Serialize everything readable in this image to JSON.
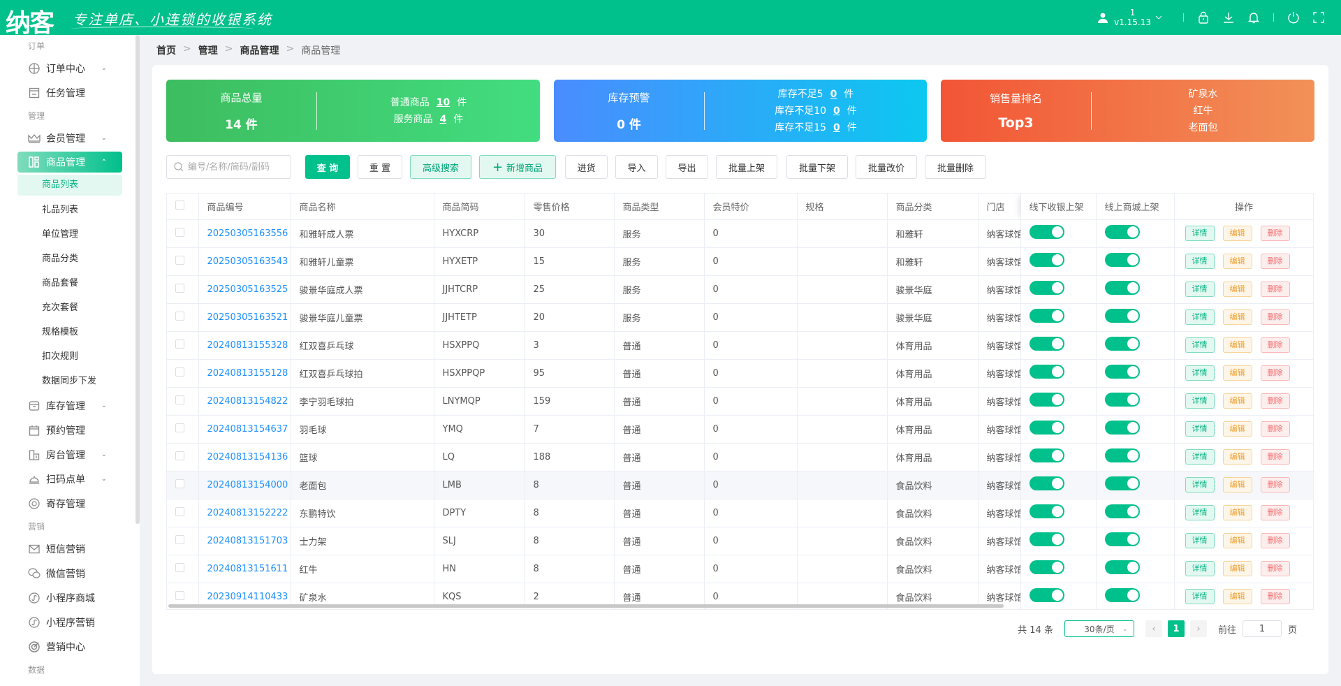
{
  "header": {
    "logo": "纳客",
    "slogan": "专注单店、小连锁的收银系统",
    "user": "1",
    "version": "v1.15.13",
    "icons": [
      "user-icon",
      "chevron-down-icon",
      "lock-icon",
      "download-icon",
      "bell-icon",
      "power-icon",
      "fullscreen-icon"
    ]
  },
  "sidebar": {
    "sections": [
      {
        "group": "订单",
        "items": [
          {
            "label": "订单中心",
            "icon": "globe-icon",
            "chevron": true
          },
          {
            "label": "任务管理",
            "icon": "task-icon"
          }
        ]
      },
      {
        "group": "管理",
        "items": [
          {
            "label": "会员管理",
            "icon": "crown-icon",
            "chevron": true
          },
          {
            "label": "商品管理",
            "icon": "goods-icon",
            "chevron": true,
            "active": true,
            "children": [
              "商品列表",
              "礼品列表",
              "单位管理",
              "商品分类",
              "商品套餐",
              "充次套餐",
              "规格模板",
              "扣次规则",
              "数据同步下发"
            ],
            "current": "商品列表"
          },
          {
            "label": "库存管理",
            "icon": "inventory-icon",
            "chevron": true
          },
          {
            "label": "预约管理",
            "icon": "calendar-icon"
          },
          {
            "label": "房台管理",
            "icon": "building-icon",
            "chevron": true
          },
          {
            "label": "扫码点单",
            "icon": "bell-service-icon",
            "chevron": true
          },
          {
            "label": "寄存管理",
            "icon": "deposit-icon"
          }
        ]
      },
      {
        "group": "营销",
        "items": [
          {
            "label": "短信营销",
            "icon": "mail-icon"
          },
          {
            "label": "微信营销",
            "icon": "wechat-icon"
          },
          {
            "label": "小程序商城",
            "icon": "miniprogram-icon"
          },
          {
            "label": "小程序营销",
            "icon": "miniprogram-icon"
          },
          {
            "label": "营销中心",
            "icon": "target-icon"
          }
        ]
      },
      {
        "group": "数据",
        "items": []
      }
    ]
  },
  "breadcrumb": [
    "首页",
    "管理",
    "商品管理",
    "商品管理"
  ],
  "stats": {
    "total": {
      "title": "商品总量",
      "value": "14",
      "unit": "件",
      "normal_label": "普通商品",
      "normal": "10",
      "service_label": "服务商品",
      "service": "4",
      "color_from": "#3dbd5f",
      "color_to": "#42dd80"
    },
    "stock": {
      "title": "库存预警",
      "value": "0",
      "unit": "件",
      "rows": [
        {
          "label": "库存不足5",
          "value": "0"
        },
        {
          "label": "库存不足10",
          "value": "0"
        },
        {
          "label": "库存不足15",
          "value": "0"
        }
      ],
      "color_from": "#4a8cff",
      "color_to": "#0cc8f0"
    },
    "sales": {
      "title": "销售量排名",
      "value": "Top3",
      "top": [
        "矿泉水",
        "红牛",
        "老面包"
      ],
      "color_from": "#f25535",
      "color_to": "#f29158"
    }
  },
  "toolbar": {
    "search_placeholder": "编号/名称/简码/副码",
    "buttons": [
      "查 询",
      "重 置",
      "高级搜索",
      "新增商品",
      "进货",
      "导入",
      "导出",
      "批量上架",
      "批量下架",
      "批量改价",
      "批量删除"
    ]
  },
  "table": {
    "columns": [
      "商品编号",
      "商品名称",
      "商品简码",
      "零售价格",
      "商品类型",
      "会员特价",
      "规格",
      "商品分类",
      "门店",
      "线下收银上架",
      "线上商城上架",
      "操作"
    ],
    "actions": [
      "详情",
      "编辑",
      "删除"
    ],
    "rows": [
      [
        "20250305163556",
        "和雅轩成人票",
        "HYXCRP",
        "30",
        "服务",
        "0",
        "",
        "和雅轩",
        "纳客球馆"
      ],
      [
        "20250305163543",
        "和雅轩儿童票",
        "HYXETP",
        "15",
        "服务",
        "0",
        "",
        "和雅轩",
        "纳客球馆"
      ],
      [
        "20250305163525",
        "骏景华庭成人票",
        "JJHTCRP",
        "25",
        "服务",
        "0",
        "",
        "骏景华庭",
        "纳客球馆"
      ],
      [
        "20250305163521",
        "骏景华庭儿童票",
        "JJHTETP",
        "20",
        "服务",
        "0",
        "",
        "骏景华庭",
        "纳客球馆"
      ],
      [
        "20240813155328",
        "红双喜乒乓球",
        "HSXPPQ",
        "3",
        "普通",
        "0",
        "",
        "体育用品",
        "纳客球馆"
      ],
      [
        "20240813155128",
        "红双喜乒乓球拍",
        "HSXPPQP",
        "95",
        "普通",
        "0",
        "",
        "体育用品",
        "纳客球馆"
      ],
      [
        "20240813154822",
        "李宁羽毛球拍",
        "LNYMQP",
        "159",
        "普通",
        "0",
        "",
        "体育用品",
        "纳客球馆"
      ],
      [
        "20240813154637",
        "羽毛球",
        "YMQ",
        "7",
        "普通",
        "0",
        "",
        "体育用品",
        "纳客球馆"
      ],
      [
        "20240813154136",
        "篮球",
        "LQ",
        "188",
        "普通",
        "0",
        "",
        "体育用品",
        "纳客球馆"
      ],
      [
        "20240813154000",
        "老面包",
        "LMB",
        "8",
        "普通",
        "0",
        "",
        "食品饮料",
        "纳客球馆"
      ],
      [
        "20240813152222",
        "东鹏特饮",
        "DPTY",
        "8",
        "普通",
        "0",
        "",
        "食品饮料",
        "纳客球馆"
      ],
      [
        "20240813151703",
        "士力架",
        "SLJ",
        "8",
        "普通",
        "0",
        "",
        "食品饮料",
        "纳客球馆"
      ],
      [
        "20240813151611",
        "红牛",
        "HN",
        "8",
        "普通",
        "0",
        "",
        "食品饮料",
        "纳客球馆"
      ],
      [
        "20230914110433",
        "矿泉水",
        "KQS",
        "2",
        "普通",
        "0",
        "",
        "食品饮料",
        "纳客球馆"
      ]
    ],
    "offline_on": [
      true,
      true,
      true,
      true,
      true,
      true,
      true,
      true,
      true,
      true,
      true,
      true,
      true,
      true
    ],
    "online_on": [
      true,
      true,
      true,
      true,
      true,
      true,
      true,
      true,
      true,
      true,
      true,
      true,
      true,
      true
    ],
    "hover_row": 9
  },
  "pagination": {
    "total": "共 14 条",
    "page_size": "30条/页",
    "current": "1",
    "goto_label": "前往",
    "goto_value": "1",
    "page_suffix": "页"
  },
  "colors": {
    "brand": "#00c08b",
    "link": "#1e90ff"
  }
}
